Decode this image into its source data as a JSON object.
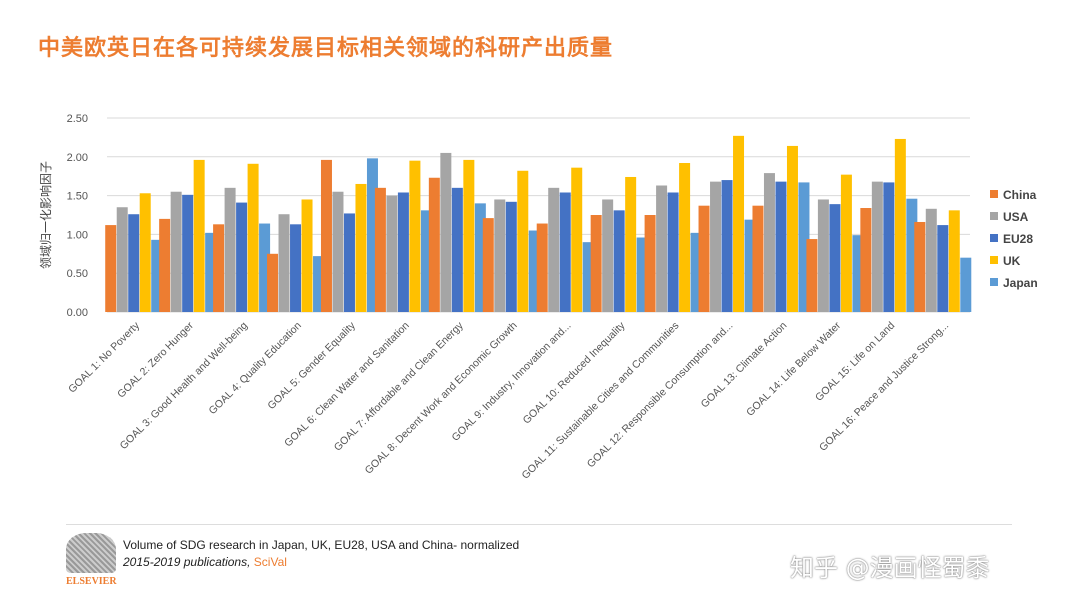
{
  "title": "中美欧英日在各可持续发展目标相关领域的科研产出质量",
  "chart_data": {
    "type": "bar",
    "title": "",
    "xlabel": "",
    "ylabel": "领域归一化影响因子",
    "ylim": [
      0,
      2.5
    ],
    "yticks": [
      "0.00",
      "0.50",
      "1.00",
      "1.50",
      "2.00",
      "2.50"
    ],
    "grid": true,
    "legend_position": "right",
    "categories": [
      "GOAL 1: No Poverty",
      "GOAL 2: Zero Hunger",
      "GOAL 3: Good Health and Well-being",
      "GOAL 4: Quality Education",
      "GOAL 5: Gender Equality",
      "GOAL 6: Clean Water and Sanitation",
      "GOAL 7: Affordable and Clean Energy",
      "GOAL 8: Decent Work and Economic Growth",
      "GOAL 9: Industry, Innovation and...",
      "GOAL 10: Reduced Inequality",
      "GOAL 11: Sustainable Cities and Communities",
      "GOAL 12: Responsible Consumption and...",
      "GOAL 13: Climate Action",
      "GOAL 14: Life Below Water",
      "GOAL 15: Life on Land",
      "GOAL 16: Peace and Justice Strong..."
    ],
    "series": [
      {
        "name": "China",
        "color": "#ED7D31",
        "values": [
          1.12,
          1.2,
          1.13,
          0.75,
          1.96,
          1.6,
          1.73,
          1.21,
          1.14,
          1.25,
          1.25,
          1.37,
          1.37,
          0.94,
          1.34,
          1.16
        ]
      },
      {
        "name": "USA",
        "color": "#A5A5A5",
        "values": [
          1.35,
          1.55,
          1.6,
          1.26,
          1.55,
          1.5,
          2.05,
          1.45,
          1.6,
          1.45,
          1.63,
          1.68,
          1.79,
          1.45,
          1.68,
          1.33
        ]
      },
      {
        "name": "EU28",
        "color": "#4472C4",
        "values": [
          1.26,
          1.51,
          1.41,
          1.13,
          1.27,
          1.54,
          1.6,
          1.42,
          1.54,
          1.31,
          1.54,
          1.7,
          1.68,
          1.39,
          1.67,
          1.12
        ]
      },
      {
        "name": "UK",
        "color": "#FFC000",
        "values": [
          1.53,
          1.96,
          1.91,
          1.45,
          1.65,
          1.95,
          1.96,
          1.82,
          1.86,
          1.74,
          1.92,
          2.27,
          2.14,
          1.77,
          2.23,
          1.31
        ]
      },
      {
        "name": "Japan",
        "color": "#5B9BD5",
        "values": [
          0.93,
          1.02,
          1.14,
          0.72,
          1.98,
          1.31,
          1.4,
          1.05,
          0.9,
          0.96,
          1.02,
          1.19,
          1.67,
          0.99,
          1.46,
          0.7
        ]
      }
    ]
  },
  "footer": {
    "source_line": "Volume of SDG research in Japan, UK, EU28, USA and China- normalized",
    "pub_line": "2015-2019 publications",
    "sep": ", ",
    "scival": "SciVal",
    "logo_text": "ELSEVIER"
  },
  "watermark": "知乎 @漫画怪蜀黍"
}
